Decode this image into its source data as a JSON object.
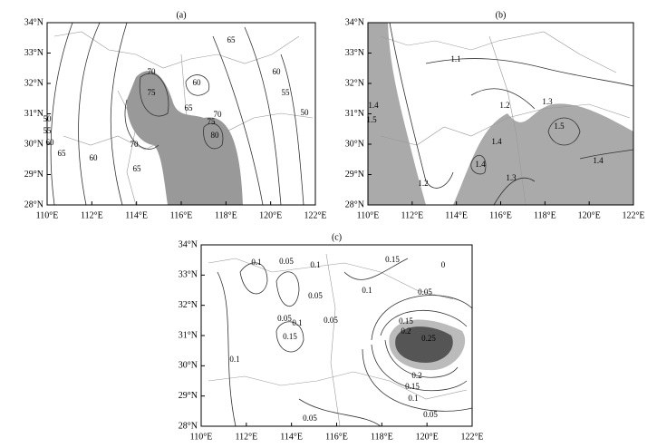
{
  "panels": [
    {
      "label": "(a)",
      "lat_labels": [
        "34°N",
        "33°N",
        "32°N",
        "31°N",
        "30°N",
        "29°N",
        "28°N"
      ],
      "lon_labels": [
        "110°E",
        "112°E",
        "114°E",
        "116°E",
        "118°E",
        "120°E",
        "122°E"
      ],
      "contour_labels": [
        "75",
        "60",
        "65",
        "70",
        "65",
        "70",
        "75",
        "80",
        "60",
        "55",
        "50",
        "65",
        "60",
        "55",
        "50",
        "60",
        "65",
        "70"
      ]
    },
    {
      "label": "(b)",
      "lat_labels": [
        "34°N",
        "33°N",
        "32°N",
        "31°N",
        "30°N",
        "29°N",
        "28°N"
      ],
      "lon_labels": [
        "110°E",
        "112°E",
        "114°E",
        "116°E",
        "118°E",
        "120°E",
        "122°E"
      ],
      "contour_labels": [
        "1.1",
        "1.2",
        "1.3",
        "1.2",
        "1.4",
        "1.5",
        "1.4",
        "1.4",
        "1.5",
        "1.4",
        "1.3"
      ]
    },
    {
      "label": "(c)",
      "lat_labels": [
        "34°N",
        "33°N",
        "32°N",
        "31°N",
        "30°N",
        "29°N",
        "28°N"
      ],
      "lon_labels": [
        "110°E",
        "112°E",
        "114°E",
        "116°E",
        "118°E",
        "120°E",
        "122°E"
      ],
      "contour_labels": [
        "0.1",
        "0.05",
        "0.1",
        "0.15",
        "0.05",
        "0.1",
        "0.05",
        "0.05",
        "0.1",
        "0.15",
        "0.05",
        "0.1",
        "0.15",
        "0.2",
        "0.25",
        "0.2",
        "0.15",
        "0.1",
        "0.05",
        "0.05",
        "0"
      ]
    }
  ]
}
